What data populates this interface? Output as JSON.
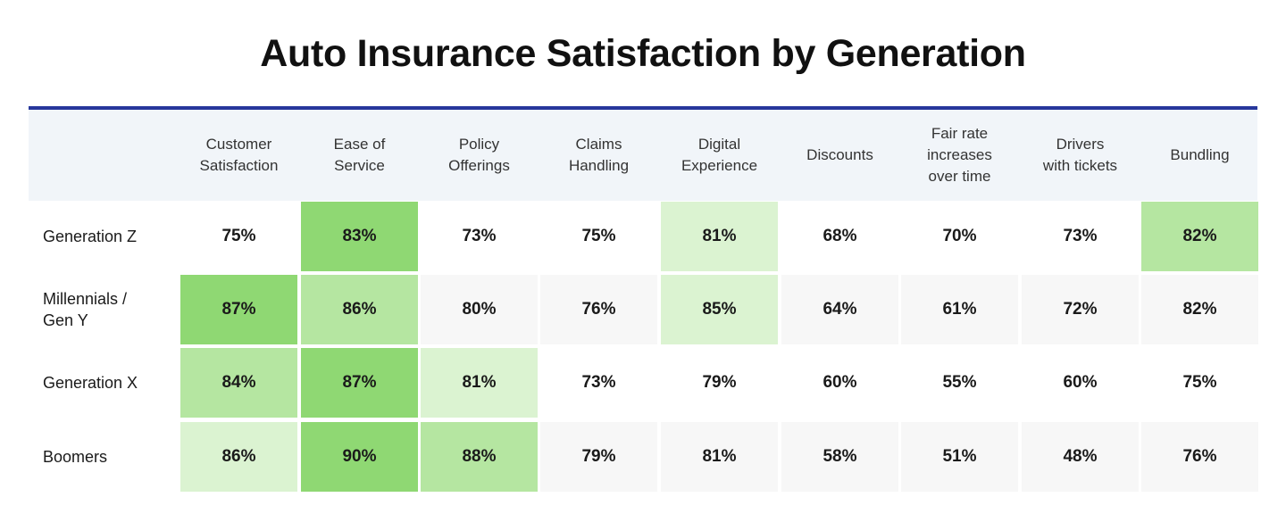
{
  "chart_data": {
    "type": "heatmap",
    "title": "Auto Insurance Satisfaction by Generation",
    "columns": [
      "Customer\nSatisfaction",
      "Ease of\nService",
      "Policy\nOfferings",
      "Claims\nHandling",
      "Digital\nExperience",
      "Discounts",
      "Fair rate\nincreases\nover time",
      "Drivers\nwith tickets",
      "Bundling"
    ],
    "rows": [
      {
        "label": "Generation Z",
        "values": [
          75,
          83,
          73,
          75,
          81,
          68,
          70,
          73,
          82
        ]
      },
      {
        "label": "Millennials /\nGen Y",
        "values": [
          87,
          86,
          80,
          76,
          85,
          64,
          61,
          72,
          82
        ]
      },
      {
        "label": "Generation X",
        "values": [
          84,
          87,
          81,
          73,
          79,
          60,
          55,
          60,
          75
        ]
      },
      {
        "label": "Boomers",
        "values": [
          86,
          90,
          88,
          79,
          81,
          58,
          51,
          48,
          76
        ]
      }
    ],
    "value_suffix": "%",
    "highlight_colors": {
      "1": "#8fd873",
      "2": "#b5e6a1",
      "3": "#dbf3d1"
    },
    "highlight_rule": "top 3 values per row shaded darkest to lightest",
    "row_band_colors": [
      "#ffffff",
      "#f7f7f7"
    ],
    "header_bg": "#f1f5f9",
    "accent_rule_color": "#27379c"
  }
}
